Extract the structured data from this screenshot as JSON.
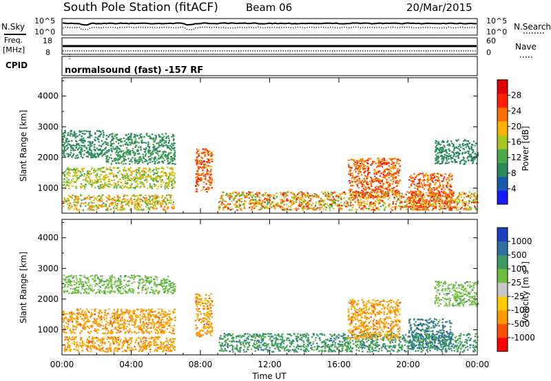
{
  "header": {
    "station": "South Pole Station (fitACF)",
    "beam": "Beam 06",
    "date": "20/Mar/2015"
  },
  "noise_panel": {
    "left_label": "N.Sky",
    "right_label": "N.Search",
    "left_ticks": [
      "10^5",
      "10^0"
    ],
    "right_ticks": [
      "10^5",
      "10^0"
    ]
  },
  "freq_panel": {
    "left_label_line1": "Freq.",
    "left_label_line2": "[MHz]",
    "right_label": "Nave",
    "left_ticks": [
      "18",
      "8"
    ],
    "right_ticks": [
      "60",
      "0"
    ]
  },
  "cpid_panel": {
    "label": "CPID",
    "text": "normalsound (fast) -157 RF"
  },
  "colors": {
    "power_scale": [
      "#1a1aff",
      "#1a5aaa",
      "#2a8a5a",
      "#4aaa4a",
      "#a8c820",
      "#ffb000",
      "#ff7000",
      "#ff2000",
      "#e00000"
    ],
    "velocity_scale": [
      "#ff0000",
      "#ff5000",
      "#ff9a00",
      "#ffcc00",
      "#c8c8c8",
      "#70c040",
      "#3a9a60",
      "#3070a0",
      "#1a40c0"
    ]
  },
  "chart_data": [
    {
      "type": "heatmap",
      "name": "power-panel",
      "xlabel": "",
      "ylabel": "Slant Range [km]",
      "x_range": [
        "00:00",
        "24:00"
      ],
      "ylim": [
        180,
        4600
      ],
      "y_ticks": [
        1000,
        2000,
        3000,
        4000
      ],
      "y_tick_labels": [
        "1000",
        "2000",
        "3000",
        "4000"
      ],
      "colorbar": {
        "label": "Power [dB]",
        "range": [
          0,
          32
        ],
        "ticks": [
          4,
          8,
          12,
          16,
          20,
          24,
          28
        ],
        "tick_labels": [
          "4",
          "8",
          "12",
          "16",
          "20",
          "24",
          "28"
        ]
      },
      "echo_regions": [
        {
          "time": [
            "00:00",
            "02:30"
          ],
          "range": [
            2000,
            2900
          ],
          "level": "8"
        },
        {
          "time": [
            "02:30",
            "06:30"
          ],
          "range": [
            1800,
            2800
          ],
          "level": "8-12"
        },
        {
          "time": [
            "00:00",
            "06:30"
          ],
          "range": [
            1000,
            1700
          ],
          "level": "12-20"
        },
        {
          "time": [
            "00:00",
            "06:30"
          ],
          "range": [
            300,
            800
          ],
          "level": "12-24"
        },
        {
          "time": [
            "07:40",
            "08:40"
          ],
          "range": [
            900,
            2300
          ],
          "level": "20-28"
        },
        {
          "time": [
            "09:00",
            "24:00"
          ],
          "range": [
            300,
            900
          ],
          "level": "12-28"
        },
        {
          "time": [
            "16:30",
            "19:30"
          ],
          "range": [
            700,
            2000
          ],
          "level": "20-28"
        },
        {
          "time": [
            "20:00",
            "22:30"
          ],
          "range": [
            300,
            1500
          ],
          "level": "20-28"
        },
        {
          "time": [
            "21:30",
            "24:00"
          ],
          "range": [
            1800,
            2600
          ],
          "level": "8"
        }
      ]
    },
    {
      "type": "heatmap",
      "name": "velocity-panel",
      "xlabel": "Time UT",
      "ylabel": "Slant Range [km]",
      "x_range": [
        "00:00",
        "24:00"
      ],
      "x_ticks": [
        "00:00",
        "04:00",
        "08:00",
        "12:00",
        "16:00",
        "20:00",
        "00:00"
      ],
      "ylim": [
        180,
        4600
      ],
      "y_ticks": [
        1000,
        2000,
        3000,
        4000
      ],
      "y_tick_labels": [
        "1000",
        "2000",
        "3000",
        "4000"
      ],
      "colorbar": {
        "label": "Velocity [m s-1]",
        "label_main": "Velocity [m s",
        "label_sup": "-1",
        "label_end": "]",
        "tick_labels": [
          "-1000",
          "-500",
          "-100",
          "-25",
          "25",
          "100",
          "500",
          "1000"
        ]
      },
      "echo_regions": [
        {
          "time": [
            "00:00",
            "06:30"
          ],
          "range": [
            2200,
            2800
          ],
          "level": "25"
        },
        {
          "time": [
            "00:00",
            "06:30"
          ],
          "range": [
            900,
            1700
          ],
          "level": "-100"
        },
        {
          "time": [
            "00:00",
            "06:30"
          ],
          "range": [
            300,
            800
          ],
          "level": "-100"
        },
        {
          "time": [
            "07:40",
            "08:40"
          ],
          "range": [
            800,
            2200
          ],
          "level": "-100"
        },
        {
          "time": [
            "09:00",
            "24:00"
          ],
          "range": [
            300,
            900
          ],
          "level": "100"
        },
        {
          "time": [
            "16:30",
            "19:30"
          ],
          "range": [
            700,
            2000
          ],
          "level": "-100"
        },
        {
          "time": [
            "20:00",
            "22:30"
          ],
          "range": [
            400,
            1400
          ],
          "level": "100-500"
        },
        {
          "time": [
            "21:30",
            "24:00"
          ],
          "range": [
            1800,
            2600
          ],
          "level": "25"
        }
      ]
    }
  ]
}
